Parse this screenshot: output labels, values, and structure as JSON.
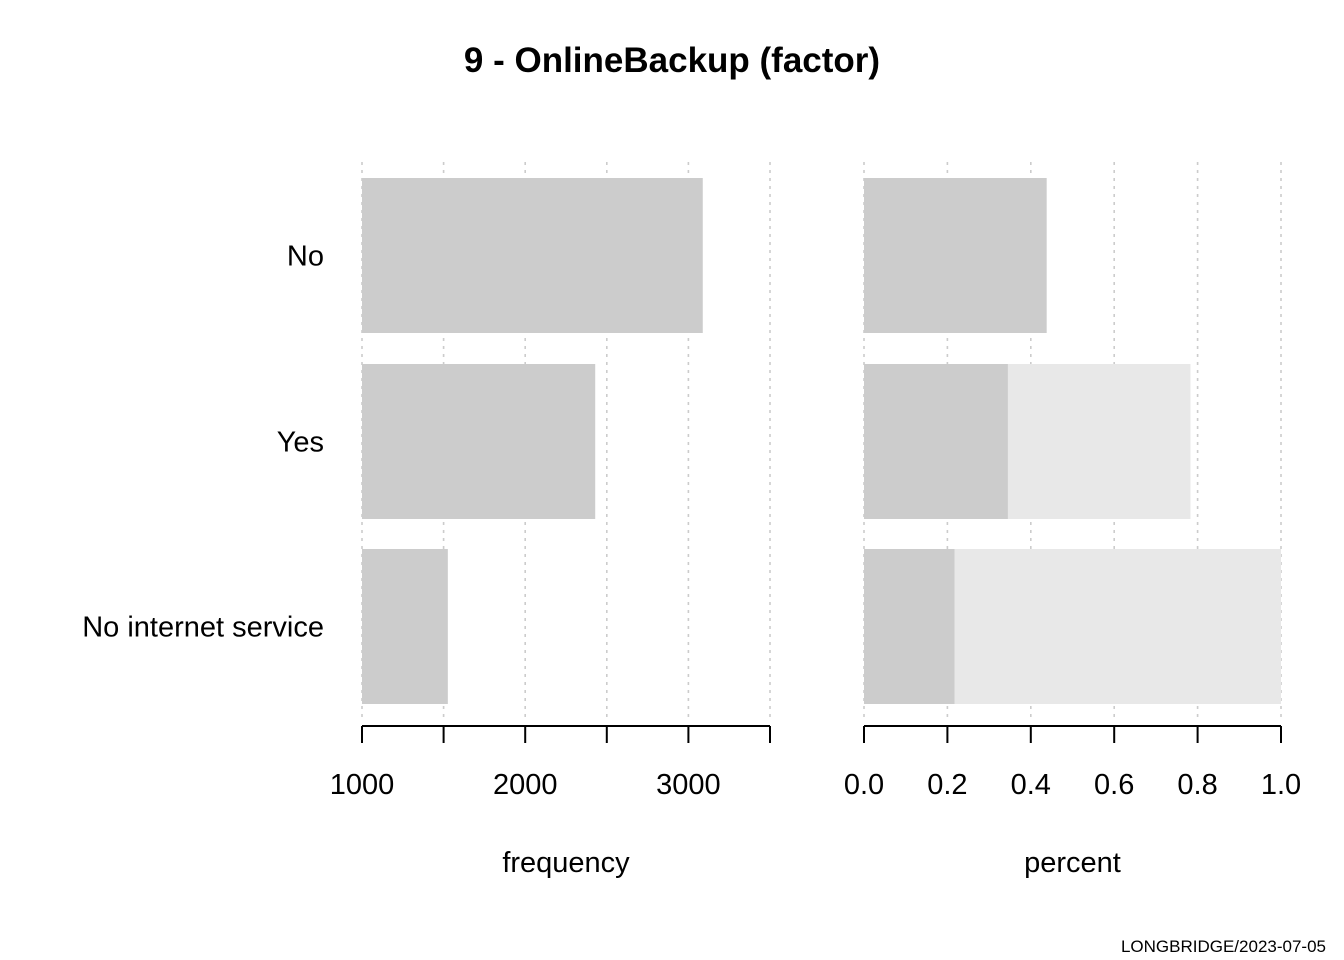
{
  "title": "9 - OnlineBackup (factor)",
  "footer": "LONGBRIDGE/2023-07-05",
  "colors": {
    "bar": "#cccccc",
    "cumulative": "#e8e8e8",
    "grid": "#cccccc",
    "axis": "#000000"
  },
  "chart_data": [
    {
      "type": "bar",
      "orientation": "horizontal",
      "categories": [
        "No",
        "Yes",
        "No internet service"
      ],
      "values": [
        3088,
        2429,
        1526
      ],
      "xlabel": "frequency",
      "xlim": [
        1000,
        3500
      ],
      "ticks": [
        1000,
        1500,
        2000,
        2500,
        3000,
        3500
      ],
      "tick_labels": [
        "1000",
        "",
        "2000",
        "",
        "3000",
        ""
      ],
      "grid": true
    },
    {
      "type": "bar",
      "orientation": "horizontal",
      "stacked": "cumulative",
      "categories": [
        "No",
        "Yes",
        "No internet service"
      ],
      "values": [
        0.438,
        0.345,
        0.217
      ],
      "cumulative": [
        0.438,
        0.783,
        1.0
      ],
      "xlabel": "percent",
      "xlim": [
        0,
        1
      ],
      "ticks": [
        0,
        0.2,
        0.4,
        0.6,
        0.8,
        1.0
      ],
      "tick_labels": [
        "0.0",
        "0.2",
        "0.4",
        "0.6",
        "0.8",
        "1.0"
      ],
      "grid": true
    }
  ]
}
